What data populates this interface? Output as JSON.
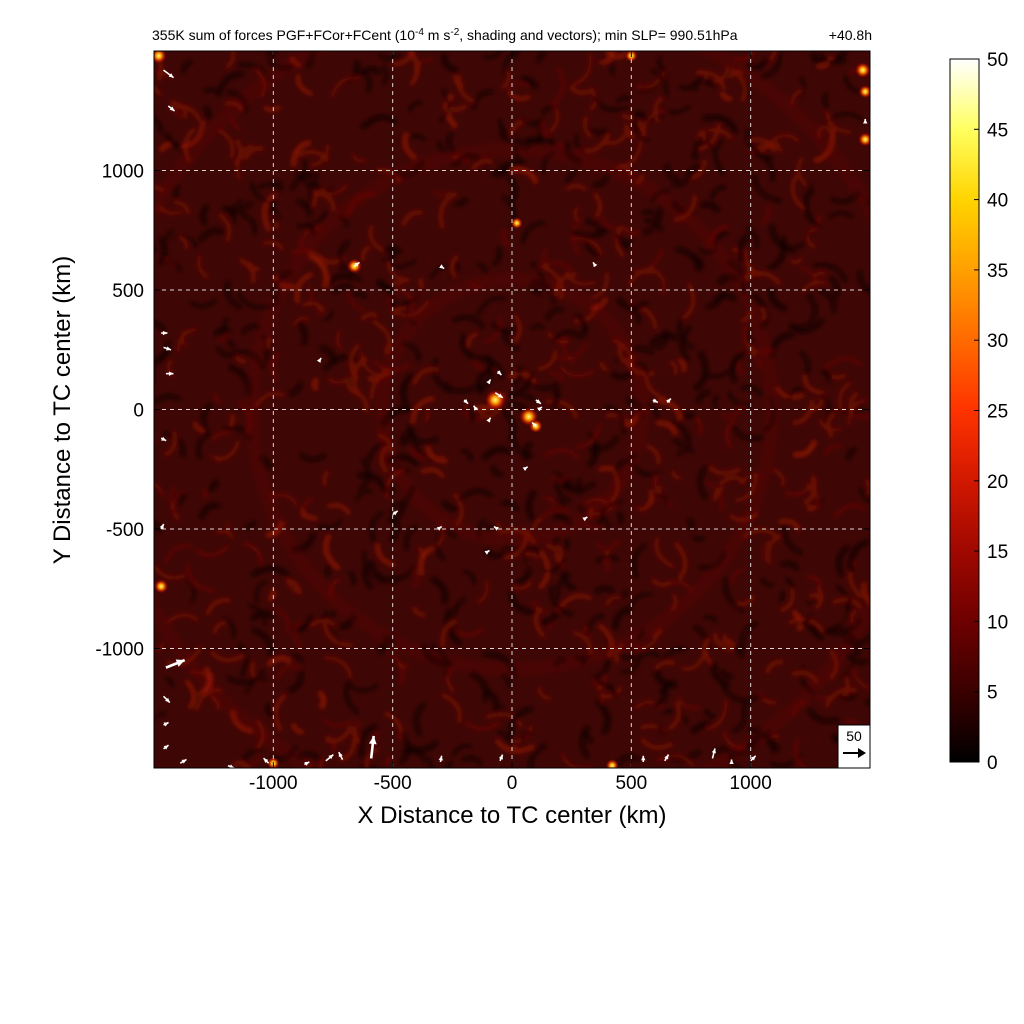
{
  "chart_data": {
    "type": "heatmap",
    "title_left": "355K sum of forces PGF+FCor+FCent (10",
    "title_exp": "-4",
    "title_mid": " m s",
    "title_exp2": "-2",
    "title_right": ", shading and vectors); min SLP= 990.51hPa",
    "time_label": "+40.8h",
    "xlabel": "X Distance to TC center (km)",
    "ylabel": "Y Distance to TC center (km)",
    "xlim": [
      -1500,
      1500
    ],
    "ylim": [
      -1500,
      1500
    ],
    "x_ticks": [
      -1000,
      -500,
      0,
      500,
      1000
    ],
    "y_ticks": [
      -1000,
      -500,
      0,
      500,
      1000
    ],
    "grid": true,
    "colorbar": {
      "min": 0,
      "max": 50,
      "ticks": [
        0,
        5,
        10,
        15,
        20,
        25,
        30,
        35,
        40,
        45,
        50
      ],
      "colors": [
        "#000000",
        "#3a0000",
        "#6e0000",
        "#a00800",
        "#d21800",
        "#ff3300",
        "#ff6a00",
        "#ffa000",
        "#ffd400",
        "#ffff60",
        "#ffffff"
      ]
    },
    "reference_vector": {
      "label": "50",
      "magnitude": 50
    },
    "vectors": [
      {
        "x": -1460,
        "y": 1420,
        "u": 8,
        "v": -6,
        "mag": 10
      },
      {
        "x": -1440,
        "y": 1270,
        "u": 5,
        "v": -4,
        "mag": 6
      },
      {
        "x": -1470,
        "y": 320,
        "u": 5,
        "v": 0,
        "mag": 5
      },
      {
        "x": -1460,
        "y": 260,
        "u": 6,
        "v": -2,
        "mag": 6
      },
      {
        "x": -1450,
        "y": 150,
        "u": 6,
        "v": 0,
        "mag": 6
      },
      {
        "x": -1470,
        "y": -120,
        "u": 4,
        "v": -2,
        "mag": 4
      },
      {
        "x": -1450,
        "y": -1080,
        "u": 15,
        "v": 6,
        "mag": 16
      },
      {
        "x": -1460,
        "y": -1200,
        "u": 5,
        "v": -5,
        "mag": 7
      },
      {
        "x": -1460,
        "y": -1320,
        "u": 4,
        "v": 2,
        "mag": 4
      },
      {
        "x": -1460,
        "y": -1420,
        "u": 4,
        "v": 3,
        "mag": 5
      },
      {
        "x": -1390,
        "y": -1480,
        "u": 5,
        "v": 3,
        "mag": 6
      },
      {
        "x": -1190,
        "y": -1490,
        "u": 5,
        "v": -2,
        "mag": 5
      },
      {
        "x": -1020,
        "y": -1480,
        "u": -4,
        "v": 4,
        "mag": 6
      },
      {
        "x": -870,
        "y": -1485,
        "u": 4,
        "v": 2,
        "mag": 5
      },
      {
        "x": -780,
        "y": -1470,
        "u": 6,
        "v": 5,
        "mag": 8
      },
      {
        "x": -710,
        "y": -1465,
        "u": -3,
        "v": 6,
        "mag": 7
      },
      {
        "x": -590,
        "y": -1460,
        "u": 2,
        "v": 18,
        "mag": 18
      },
      {
        "x": -300,
        "y": -1475,
        "u": 1,
        "v": 5,
        "mag": 5
      },
      {
        "x": -50,
        "y": -1470,
        "u": 2,
        "v": 5,
        "mag": 5
      },
      {
        "x": 550,
        "y": -1475,
        "u": 0,
        "v": 5,
        "mag": 5
      },
      {
        "x": 640,
        "y": -1470,
        "u": 3,
        "v": 5,
        "mag": 6
      },
      {
        "x": 840,
        "y": -1460,
        "u": 2,
        "v": 8,
        "mag": 8
      },
      {
        "x": 920,
        "y": -1480,
        "u": 0,
        "v": 3,
        "mag": 3
      },
      {
        "x": 1000,
        "y": -1470,
        "u": 4,
        "v": 4,
        "mag": 6
      },
      {
        "x": -660,
        "y": 600,
        "u": 4,
        "v": 3,
        "mag": 5
      },
      {
        "x": -300,
        "y": 600,
        "u": 3,
        "v": -2,
        "mag": 4
      },
      {
        "x": 350,
        "y": 600,
        "u": -2,
        "v": 3,
        "mag": 4
      },
      {
        "x": -810,
        "y": 200,
        "u": 2,
        "v": 3,
        "mag": 4
      },
      {
        "x": -100,
        "y": 110,
        "u": 2,
        "v": 3,
        "mag": 4
      },
      {
        "x": -60,
        "y": 160,
        "u": 3,
        "v": -3,
        "mag": 4
      },
      {
        "x": -70,
        "y": 70,
        "u": 6,
        "v": -4,
        "mag": 7
      },
      {
        "x": -200,
        "y": 40,
        "u": 3,
        "v": -3,
        "mag": 4
      },
      {
        "x": -150,
        "y": 0,
        "u": -2,
        "v": 3,
        "mag": 4
      },
      {
        "x": -100,
        "y": -50,
        "u": 2,
        "v": 3,
        "mag": 4
      },
      {
        "x": 100,
        "y": 40,
        "u": 4,
        "v": -3,
        "mag": 5
      },
      {
        "x": 110,
        "y": 0,
        "u": 3,
        "v": 2,
        "mag": 4
      },
      {
        "x": 100,
        "y": -70,
        "u": -3,
        "v": 3,
        "mag": 4
      },
      {
        "x": 590,
        "y": 40,
        "u": 4,
        "v": -2,
        "mag": 4
      },
      {
        "x": 650,
        "y": 30,
        "u": 3,
        "v": 3,
        "mag": 4
      },
      {
        "x": 50,
        "y": -250,
        "u": 3,
        "v": 2,
        "mag": 4
      },
      {
        "x": -500,
        "y": -440,
        "u": 4,
        "v": 3,
        "mag": 5
      },
      {
        "x": -310,
        "y": -500,
        "u": 3,
        "v": 2,
        "mag": 4
      },
      {
        "x": -60,
        "y": -500,
        "u": -3,
        "v": 2,
        "mag": 4
      },
      {
        "x": -110,
        "y": -600,
        "u": 3,
        "v": 2,
        "mag": 4
      },
      {
        "x": 300,
        "y": -460,
        "u": 3,
        "v": 2,
        "mag": 4
      },
      {
        "x": -1470,
        "y": -500,
        "u": 2,
        "v": 4,
        "mag": 4
      },
      {
        "x": 1480,
        "y": 1200,
        "u": 0,
        "v": 3,
        "mag": 3
      }
    ],
    "hotspots": [
      {
        "x": -70,
        "y": 40,
        "value": 45
      },
      {
        "x": 70,
        "y": -30,
        "value": 40
      },
      {
        "x": -660,
        "y": 600,
        "value": 28
      },
      {
        "x": 20,
        "y": 780,
        "value": 18
      },
      {
        "x": -1470,
        "y": -740,
        "value": 25
      },
      {
        "x": 1480,
        "y": 1130,
        "value": 25
      },
      {
        "x": 1470,
        "y": 1420,
        "value": 30
      },
      {
        "x": 1480,
        "y": 1330,
        "value": 22
      },
      {
        "x": -1000,
        "y": -1480,
        "value": 20
      },
      {
        "x": 420,
        "y": -1490,
        "value": 22
      },
      {
        "x": 500,
        "y": 1480,
        "value": 20
      },
      {
        "x": 100,
        "y": -70,
        "value": 24
      },
      {
        "x": -1480,
        "y": 1480,
        "value": 30
      }
    ]
  }
}
